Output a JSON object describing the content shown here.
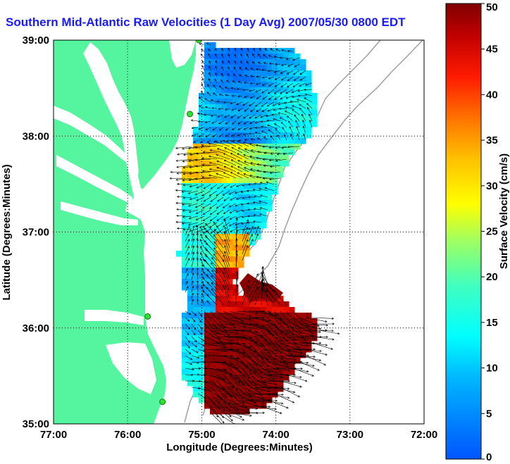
{
  "title": "Southern Mid-Atlantic Raw Velocities (1 Day Avg) 2007/05/30 0800 EDT",
  "x_axis": {
    "label": "Longitude (Degrees:Minutes)",
    "ticks": [
      "77:00",
      "76:00",
      "75:00",
      "74:00",
      "73:00",
      "72:00"
    ]
  },
  "y_axis": {
    "label": "Latitude (Degrees:Minutes)",
    "ticks": [
      "39:00",
      "38:00",
      "37:00",
      "36:00",
      "35:00"
    ]
  },
  "colorbar": {
    "label": "Surface Velocity (cm/s)",
    "ticks": [
      "50",
      "45",
      "40",
      "35",
      "30",
      "25",
      "20",
      "15",
      "10",
      "5",
      "0"
    ],
    "min": 0,
    "max": 50,
    "colormap": "jet"
  },
  "colors": {
    "land": "#55f5a0",
    "water": "#ffffff",
    "title": "#1a1aff",
    "grid": "#000000",
    "arrow": "#000000",
    "bathymetry": "#a0a0a0",
    "station": "#33dd33"
  },
  "map_extent": {
    "lon_min": -77,
    "lon_max": -72,
    "lat_min": 35,
    "lat_max": 39
  },
  "stations": [
    {
      "lat": 39.0,
      "lon": -75.04
    },
    {
      "lat": 38.23,
      "lon": -75.16
    },
    {
      "lat": 36.12,
      "lon": -75.73
    },
    {
      "lat": 35.23,
      "lon": -75.53
    }
  ]
}
